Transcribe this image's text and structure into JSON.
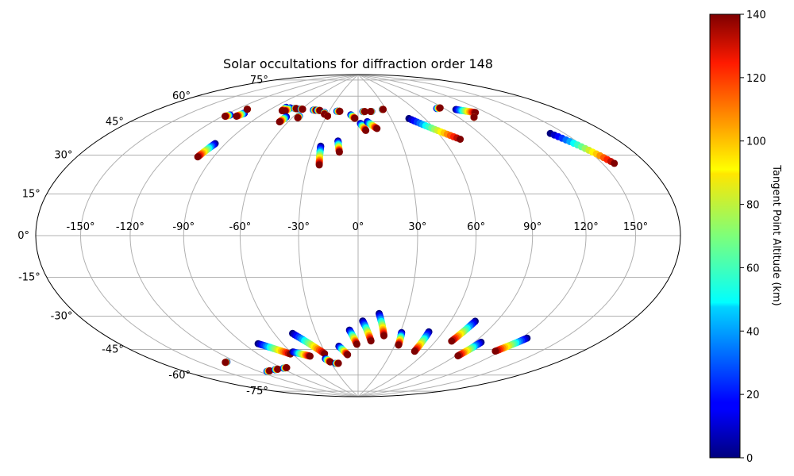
{
  "chart_data": {
    "type": "scatter",
    "projection": "aitoff-hammer",
    "title": "Solar occultations for diffraction order 148",
    "xlabel": "",
    "ylabel": "",
    "longitude_tick_labels": [
      "-150°",
      "-120°",
      "-90°",
      "-60°",
      "-30°",
      "0°",
      "30°",
      "60°",
      "90°",
      "120°",
      "150°"
    ],
    "longitude_ticks": [
      -150,
      -120,
      -90,
      -60,
      -30,
      0,
      30,
      60,
      90,
      120,
      150
    ],
    "latitude_tick_labels": [
      "-75°",
      "-60°",
      "-45°",
      "-30°",
      "-15°",
      "0°",
      "15°",
      "30°",
      "45°",
      "60°",
      "75°"
    ],
    "latitude_ticks": [
      -75,
      -60,
      -45,
      -30,
      -15,
      0,
      15,
      30,
      45,
      60,
      75
    ],
    "xlim": [
      -180,
      180
    ],
    "ylim": [
      -90,
      90
    ],
    "grid": true,
    "colorbar": {
      "label": "Tangent Point Altitude (km)",
      "range": [
        0,
        140
      ],
      "ticks": [
        0,
        20,
        40,
        60,
        80,
        100,
        120,
        140
      ],
      "tick_labels": [
        "0",
        "20",
        "40",
        "60",
        "80",
        "100",
        "120",
        "140"
      ],
      "colormap": "jet"
    },
    "occultations": [
      {
        "start": [
          -116,
          58
        ],
        "end": [
          -118,
          57
        ]
      },
      {
        "start": [
          -107,
          60
        ],
        "end": [
          -109,
          58
        ]
      },
      {
        "start": [
          -111,
          62
        ],
        "end": [
          -111,
          62
        ]
      },
      {
        "start": [
          -97,
          44
        ],
        "end": [
          -100,
          37
        ]
      },
      {
        "start": [
          -78,
          66
        ],
        "end": [
          -77,
          64
        ]
      },
      {
        "start": [
          -73,
          66
        ],
        "end": [
          -74,
          64
        ]
      },
      {
        "start": [
          -68,
          66
        ],
        "end": [
          -66,
          66
        ]
      },
      {
        "start": [
          -61,
          66
        ],
        "end": [
          -59,
          66
        ]
      },
      {
        "start": [
          -66,
          61
        ],
        "end": [
          -67,
          58
        ]
      },
      {
        "start": [
          -55,
          62
        ],
        "end": [
          -55,
          61
        ]
      },
      {
        "start": [
          -47,
          66
        ],
        "end": [
          -44,
          66
        ]
      },
      {
        "start": [
          -43,
          66
        ],
        "end": [
          -40,
          66
        ]
      },
      {
        "start": [
          -34,
          65
        ],
        "end": [
          -33,
          64
        ]
      },
      {
        "start": [
          -29,
          63
        ],
        "end": [
          -29,
          63
        ]
      },
      {
        "start": [
          -22,
          66
        ],
        "end": [
          -19,
          66
        ]
      },
      {
        "start": [
          -25,
          46
        ],
        "end": [
          -23,
          36
        ]
      },
      {
        "start": [
          -14,
          49
        ],
        "end": [
          -12,
          43
        ]
      },
      {
        "start": [
          -7,
          64
        ],
        "end": [
          -3,
          62
        ]
      },
      {
        "start": [
          2,
          59
        ],
        "end": [
          6,
          55
        ]
      },
      {
        "start": [
          5,
          66
        ],
        "end": [
          7,
          66
        ]
      },
      {
        "start": [
          8,
          60
        ],
        "end": [
          15,
          56
        ]
      },
      {
        "start": [
          14,
          66
        ],
        "end": [
          13,
          66
        ]
      },
      {
        "start": [
          26,
          67
        ],
        "end": [
          27,
          67
        ]
      },
      {
        "start": [
          46,
          61
        ],
        "end": [
          72,
          48
        ]
      },
      {
        "start": [
          83,
          65
        ],
        "end": [
          87,
          65
        ]
      },
      {
        "start": [
          99,
          63
        ],
        "end": [
          111,
          60
        ]
      },
      {
        "start": [
          103,
          58
        ],
        "end": [
          103,
          58
        ]
      },
      {
        "start": [
          140,
          45
        ],
        "end": [
          158,
          29
        ]
      },
      {
        "start": [
          -112,
          -68
        ],
        "end": [
          -108,
          -68
        ]
      },
      {
        "start": [
          -100,
          -68
        ],
        "end": [
          -96,
          -68
        ]
      },
      {
        "start": [
          -88,
          -68
        ],
        "end": [
          -84,
          -68
        ]
      },
      {
        "start": [
          -79,
          -54
        ],
        "end": [
          -62,
          -61
        ]
      },
      {
        "start": [
          -58,
          -60
        ],
        "end": [
          -46,
          -63
        ]
      },
      {
        "start": [
          -47,
          -50
        ],
        "end": [
          -31,
          -62
        ]
      },
      {
        "start": [
          -33,
          -65
        ],
        "end": [
          -30,
          -67
        ]
      },
      {
        "start": [
          -25,
          -68
        ],
        "end": [
          -22,
          -68
        ]
      },
      {
        "start": [
          -16,
          -58
        ],
        "end": [
          -10,
          -63
        ]
      },
      {
        "start": [
          -6,
          -49
        ],
        "end": [
          -1,
          -57
        ]
      },
      {
        "start": [
          3,
          -44
        ],
        "end": [
          10,
          -55
        ]
      },
      {
        "start": [
          13,
          -40
        ],
        "end": [
          19,
          -52
        ]
      },
      {
        "start": [
          31,
          -50
        ],
        "end": [
          33,
          -57
        ]
      },
      {
        "start": [
          50,
          -49
        ],
        "end": [
          50,
          -60
        ]
      },
      {
        "start": [
          76,
          -42
        ],
        "end": [
          72,
          -53
        ]
      },
      {
        "start": [
          95,
          -52
        ],
        "end": [
          92,
          -60
        ]
      },
      {
        "start": [
          124,
          -47
        ],
        "end": [
          116,
          -55
        ]
      },
      {
        "start": [
          -128,
          -60
        ],
        "end": [
          -130,
          -60
        ]
      }
    ]
  }
}
